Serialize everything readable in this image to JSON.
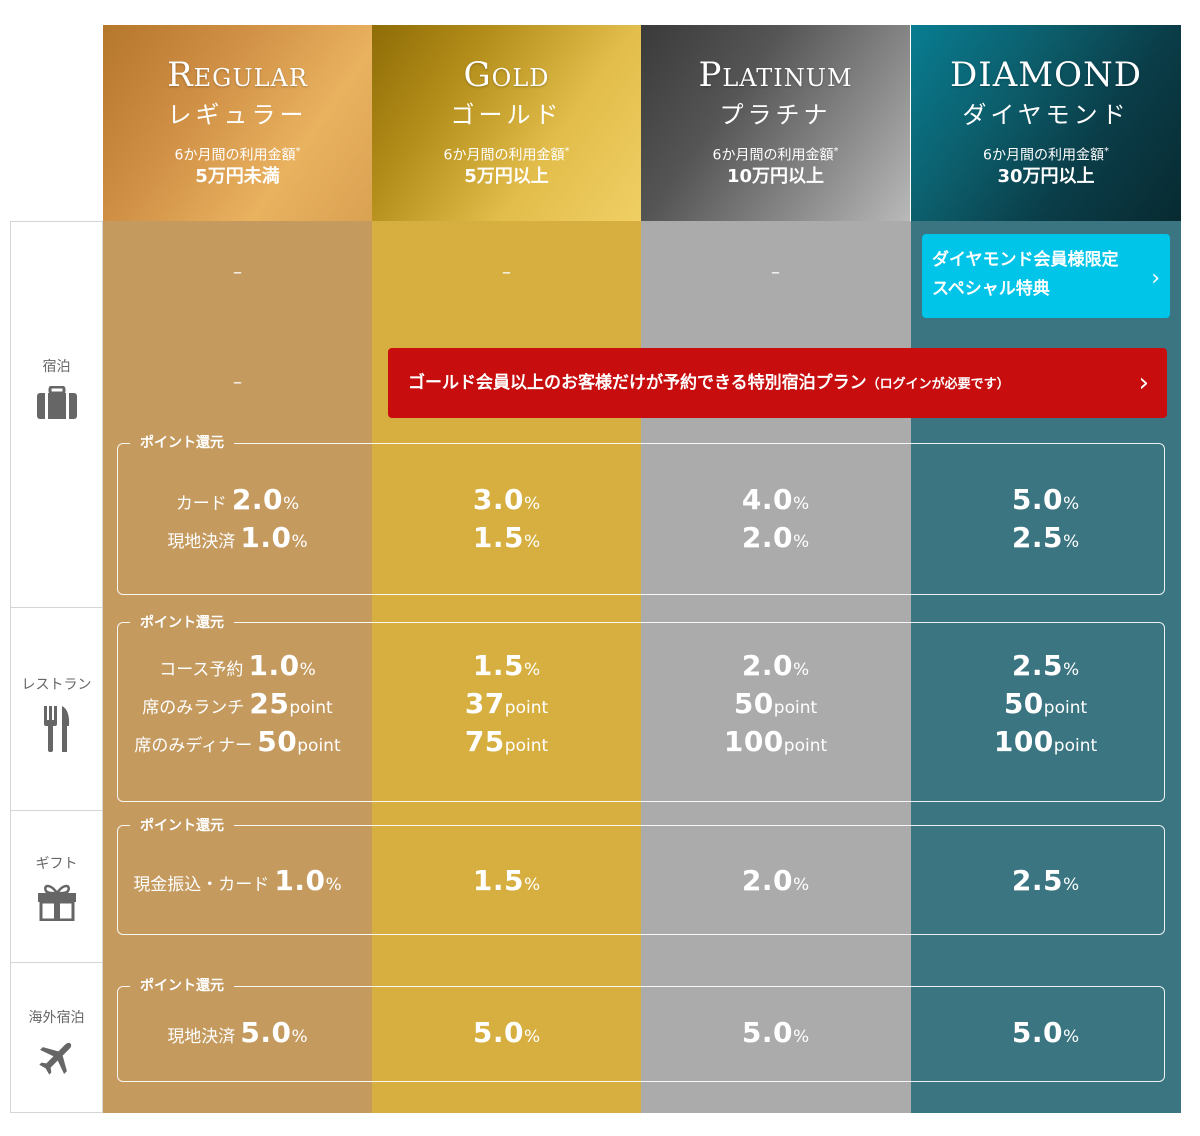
{
  "tiers": [
    {
      "name": "Regular",
      "kana": "レギュラー",
      "condition": "6か月間の利用金額",
      "asterisk": "*",
      "amount": "5万円未満"
    },
    {
      "name": "Gold",
      "kana": "ゴールド",
      "condition": "6か月間の利用金額",
      "asterisk": "*",
      "amount": "5万円以上"
    },
    {
      "name": "Platinum",
      "kana": "プラチナ",
      "condition": "6か月間の利用金額",
      "asterisk": "*",
      "amount": "10万円以上"
    },
    {
      "name": "DIAMOND",
      "kana": "ダイヤモンド",
      "condition": "6か月間の利用金額",
      "asterisk": "*",
      "amount": "30万円以上"
    }
  ],
  "categories": {
    "hotel": {
      "label": "宿泊",
      "icon": "suitcase-icon"
    },
    "restaurant": {
      "label": "レストラン",
      "icon": "fork-knife-icon"
    },
    "gift": {
      "label": "ギフト",
      "icon": "gift-icon"
    },
    "overseas": {
      "label": "海外宿泊",
      "icon": "airplane-icon"
    }
  },
  "dash": "–",
  "diamond_benefit": {
    "line1": "ダイヤモンド会員様限定",
    "line2": "スペシャル特典",
    "chevron": "›"
  },
  "gold_plan_banner": {
    "text": "ゴールド会員以上のお客様だけが予約できる特別宿泊プラン",
    "note": "（ログインが必要です）",
    "chevron": "›"
  },
  "point_label": "ポイント還元",
  "units": {
    "percent": "%",
    "point": "point"
  },
  "hotel_points": {
    "card": {
      "label": "カード",
      "values": [
        "2.0",
        "3.0",
        "4.0",
        "5.0"
      ]
    },
    "onsite": {
      "label": "現地決済",
      "values": [
        "1.0",
        "1.5",
        "2.0",
        "2.5"
      ]
    }
  },
  "restaurant_points": {
    "course": {
      "label": "コース予約",
      "values": [
        "1.0",
        "1.5",
        "2.0",
        "2.5"
      ]
    },
    "lunch": {
      "label": "席のみランチ",
      "values": [
        "25",
        "37",
        "50",
        "50"
      ]
    },
    "dinner": {
      "label": "席のみディナー",
      "values": [
        "50",
        "75",
        "100",
        "100"
      ]
    }
  },
  "gift_points": {
    "transfer_card": {
      "label": "現金振込・カード",
      "values": [
        "1.0",
        "1.5",
        "2.0",
        "2.5"
      ]
    }
  },
  "overseas_points": {
    "onsite": {
      "label": "現地決済",
      "values": [
        "5.0",
        "5.0",
        "5.0",
        "5.0"
      ]
    }
  },
  "colors": {
    "regular": "#c49a5f",
    "gold": "#d6af40",
    "platinum": "#ababab",
    "diamond": "#3a7581",
    "diamond_button": "#00c4e8",
    "red_banner": "#c70d0d"
  }
}
